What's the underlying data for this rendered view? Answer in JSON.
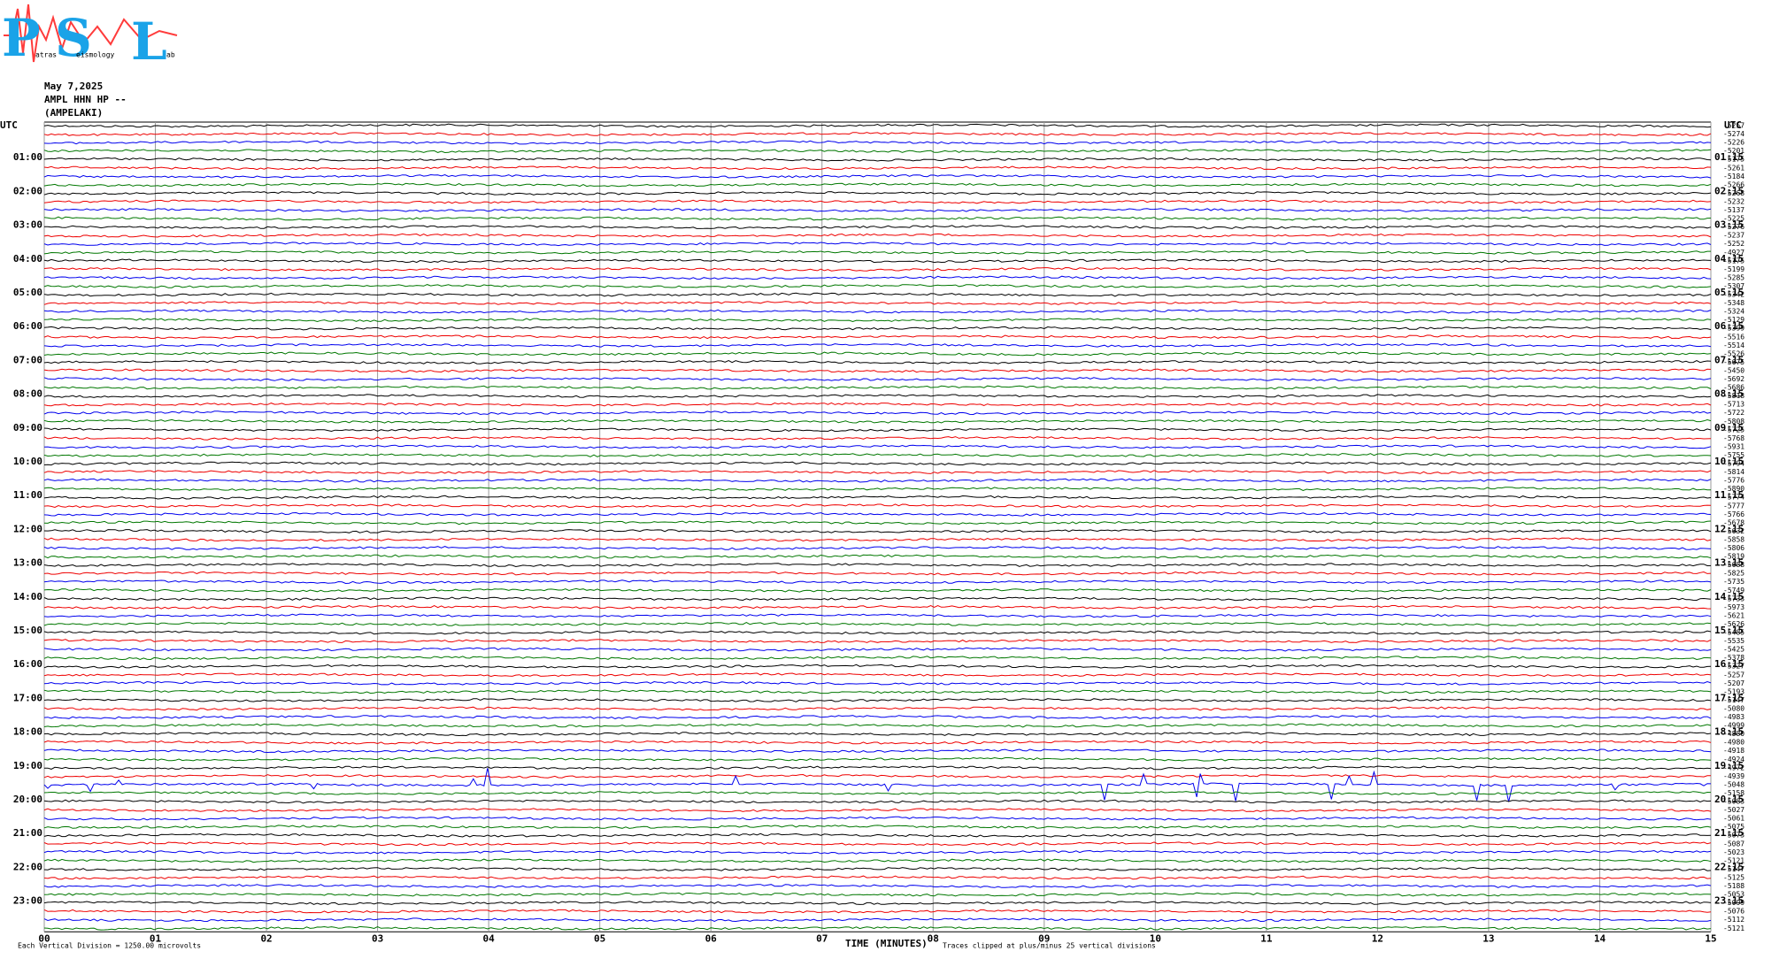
{
  "logo": {
    "letters": [
      "P",
      "S",
      "L"
    ],
    "small": [
      "atras",
      "eismology",
      "ab"
    ]
  },
  "header": {
    "date": "May 7,2025",
    "station": "AMPL HHN HP --",
    "name": "(AMPELAKI)"
  },
  "left_label": "UTC",
  "right_label": "UTC",
  "left_hours": [
    "01:00",
    "02:00",
    "03:00",
    "04:00",
    "05:00",
    "06:00",
    "07:00",
    "08:00",
    "09:00",
    "10:00",
    "11:00",
    "12:00",
    "13:00",
    "14:00",
    "15:00",
    "16:00",
    "17:00",
    "18:00",
    "19:00",
    "20:00",
    "21:00",
    "22:00",
    "23:00"
  ],
  "right_hours": [
    "01:15",
    "02:15",
    "03:15",
    "04:15",
    "05:15",
    "06:15",
    "07:15",
    "08:15",
    "09:15",
    "10:15",
    "11:15",
    "12:15",
    "13:15",
    "14:15",
    "15:15",
    "16:15",
    "17:15",
    "18:15",
    "19:15",
    "20:15",
    "21:15",
    "22:15",
    "23:15"
  ],
  "row_offsets": [
    -5257,
    -5274,
    -5226,
    -5201,
    -5175,
    -5261,
    -5184,
    -5266,
    -5268,
    -5232,
    -5137,
    -5225,
    -5276,
    -5237,
    -5252,
    -4927,
    -5175,
    -5199,
    -5285,
    -5307,
    -5342,
    -5348,
    -5324,
    -5129,
    -5399,
    -5516,
    -5514,
    -5526,
    -5675,
    -5450,
    -5692,
    -5686,
    -5818,
    -5713,
    -5722,
    -5808,
    -5725,
    -5768,
    -5931,
    -5755,
    -5794,
    -5814,
    -5776,
    -5890,
    -5774,
    -5777,
    -5766,
    -5678,
    -5632,
    -5858,
    -5806,
    -5819,
    -5688,
    -5825,
    -5735,
    -5749,
    -5733,
    -5973,
    -5621,
    -5626,
    -5485,
    -5535,
    -5425,
    -5378,
    -5327,
    -5257,
    -5207,
    -5193,
    -5147,
    -5080,
    -4983,
    -4999,
    -4880,
    -4980,
    -4918,
    -4924,
    -4972,
    -4939,
    -5048,
    -5158,
    -5083,
    -5027,
    -5061,
    -5075,
    -5073,
    -5087,
    -5023,
    -5121,
    -5147,
    -5125,
    -5188,
    -5053,
    -5099,
    -5076,
    -5112,
    -5121
  ],
  "x_ticks": [
    "00",
    "01",
    "02",
    "03",
    "04",
    "05",
    "06",
    "07",
    "08",
    "09",
    "10",
    "11",
    "12",
    "13",
    "14",
    "15"
  ],
  "footer": {
    "scale": "Each Vertical Division = 1250.00 microvolts",
    "x_title": "TIME (MINUTES)",
    "clip": "Traces clipped at plus/minus 25 vertical divisions"
  }
}
